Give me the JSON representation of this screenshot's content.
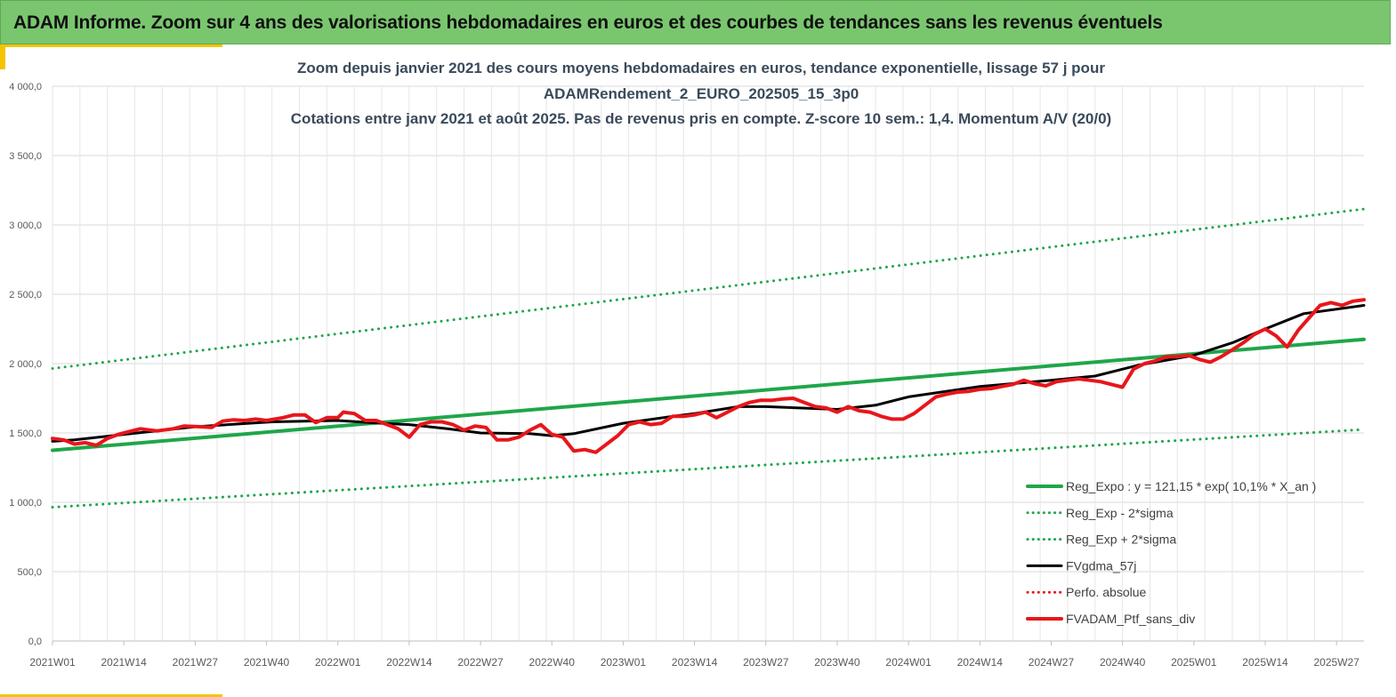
{
  "header": {
    "title": "ADAM Informe. Zoom sur 4 ans des valorisations hebdomadaires en euros et des courbes de tendances sans les revenus éventuels"
  },
  "colors": {
    "header_bg": "#7ac66f",
    "accent": "#f5c400",
    "trend_green": "#1fa64a",
    "series_red": "#e8161b",
    "series_black": "#000000",
    "title_text": "#3a4a5a"
  },
  "chart_data": {
    "type": "line",
    "title_lines": [
      "Zoom depuis janvier 2021 des cours moyens hebdomadaires  en euros, tendance exponentielle, lissage 57 j pour",
      "ADAMRendement_2_EURO_202505_15_3p0",
      "Cotations  entre janv 2021 et août 2025. Pas de revenus pris en compte. Z-score 10 sem.: 1,4. Momentum A/V (20/0)"
    ],
    "ylim": [
      0,
      4000
    ],
    "y_ticks": [
      {
        "value": 0,
        "label": "0,0"
      },
      {
        "value": 500,
        "label": "500,0"
      },
      {
        "value": 1000,
        "label": "1 000,0"
      },
      {
        "value": 1500,
        "label": "1 500,0"
      },
      {
        "value": 2000,
        "label": "2 000,0"
      },
      {
        "value": 2500,
        "label": "2 500,0"
      },
      {
        "value": 3000,
        "label": "3 000,0"
      },
      {
        "value": 3500,
        "label": "3 500,0"
      },
      {
        "value": 4000,
        "label": "4 000,0"
      }
    ],
    "x_range_weeks": [
      0,
      239
    ],
    "x_ticks": [
      {
        "week": 0,
        "label": "2021W01"
      },
      {
        "week": 13,
        "label": "2021W14"
      },
      {
        "week": 26,
        "label": "2021W27"
      },
      {
        "week": 39,
        "label": "2021W40"
      },
      {
        "week": 52,
        "label": "2022W01"
      },
      {
        "week": 65,
        "label": "2022W14"
      },
      {
        "week": 78,
        "label": "2022W27"
      },
      {
        "week": 91,
        "label": "2022W40"
      },
      {
        "week": 104,
        "label": "2023W01"
      },
      {
        "week": 117,
        "label": "2023W14"
      },
      {
        "week": 130,
        "label": "2023W27"
      },
      {
        "week": 143,
        "label": "2023W40"
      },
      {
        "week": 156,
        "label": "2024W01"
      },
      {
        "week": 169,
        "label": "2024W14"
      },
      {
        "week": 182,
        "label": "2024W27"
      },
      {
        "week": 195,
        "label": "2024W40"
      },
      {
        "week": 208,
        "label": "2025W01"
      },
      {
        "week": 221,
        "label": "2025W14"
      },
      {
        "week": 234,
        "label": "2025W27"
      }
    ],
    "grid": true,
    "legend_position": "bottom-right",
    "series": [
      {
        "name": "Reg_Expo : y = 121,15 * exp( 10,1% *  X_an )",
        "style": "solid",
        "color": "#1fa64a",
        "width": 4,
        "points": [
          [
            0,
            1375
          ],
          [
            239,
            2175
          ]
        ]
      },
      {
        "name": "Reg_Exp - 2*sigma",
        "style": "dotted",
        "color": "#1fa64a",
        "width": 3,
        "points": [
          [
            0,
            965
          ],
          [
            239,
            1525
          ]
        ]
      },
      {
        "name": "Reg_Exp + 2*sigma",
        "style": "dotted",
        "color": "#1fa64a",
        "width": 3,
        "points": [
          [
            0,
            1965
          ],
          [
            239,
            3115
          ]
        ]
      },
      {
        "name": "FVgdma_57j",
        "style": "solid",
        "color": "#000000",
        "width": 3,
        "points": [
          [
            0,
            1440
          ],
          [
            4,
            1450
          ],
          [
            13,
            1490
          ],
          [
            26,
            1545
          ],
          [
            40,
            1580
          ],
          [
            52,
            1590
          ],
          [
            60,
            1570
          ],
          [
            65,
            1560
          ],
          [
            72,
            1530
          ],
          [
            78,
            1500
          ],
          [
            87,
            1495
          ],
          [
            91,
            1480
          ],
          [
            95,
            1495
          ],
          [
            104,
            1570
          ],
          [
            113,
            1620
          ],
          [
            117,
            1640
          ],
          [
            125,
            1690
          ],
          [
            130,
            1690
          ],
          [
            143,
            1670
          ],
          [
            150,
            1700
          ],
          [
            156,
            1760
          ],
          [
            169,
            1835
          ],
          [
            182,
            1880
          ],
          [
            190,
            1910
          ],
          [
            198,
            1990
          ],
          [
            208,
            2060
          ],
          [
            215,
            2150
          ],
          [
            221,
            2250
          ],
          [
            228,
            2360
          ],
          [
            239,
            2420
          ]
        ]
      },
      {
        "name": "Perfo. absolue",
        "style": "dotted",
        "color": "#e8161b",
        "width": 3,
        "points": []
      },
      {
        "name": "FVADAM_Ptf_sans_div",
        "style": "solid",
        "color": "#e8161b",
        "width": 4,
        "points": [
          [
            0,
            1460
          ],
          [
            2,
            1450
          ],
          [
            4,
            1420
          ],
          [
            6,
            1430
          ],
          [
            8,
            1410
          ],
          [
            10,
            1460
          ],
          [
            12,
            1490
          ],
          [
            14,
            1510
          ],
          [
            16,
            1530
          ],
          [
            19,
            1515
          ],
          [
            22,
            1530
          ],
          [
            24,
            1550
          ],
          [
            27,
            1545
          ],
          [
            29,
            1540
          ],
          [
            31,
            1585
          ],
          [
            33,
            1595
          ],
          [
            35,
            1590
          ],
          [
            37,
            1600
          ],
          [
            39,
            1590
          ],
          [
            42,
            1610
          ],
          [
            44,
            1630
          ],
          [
            46,
            1630
          ],
          [
            48,
            1575
          ],
          [
            50,
            1610
          ],
          [
            52,
            1610
          ],
          [
            53,
            1650
          ],
          [
            55,
            1640
          ],
          [
            57,
            1590
          ],
          [
            59,
            1590
          ],
          [
            61,
            1560
          ],
          [
            63,
            1530
          ],
          [
            65,
            1470
          ],
          [
            67,
            1560
          ],
          [
            69,
            1580
          ],
          [
            71,
            1580
          ],
          [
            73,
            1560
          ],
          [
            75,
            1520
          ],
          [
            77,
            1550
          ],
          [
            79,
            1540
          ],
          [
            81,
            1450
          ],
          [
            83,
            1450
          ],
          [
            85,
            1470
          ],
          [
            87,
            1520
          ],
          [
            89,
            1560
          ],
          [
            91,
            1490
          ],
          [
            93,
            1470
          ],
          [
            95,
            1370
          ],
          [
            97,
            1380
          ],
          [
            99,
            1360
          ],
          [
            101,
            1420
          ],
          [
            103,
            1480
          ],
          [
            105,
            1560
          ],
          [
            107,
            1580
          ],
          [
            109,
            1560
          ],
          [
            111,
            1570
          ],
          [
            113,
            1620
          ],
          [
            115,
            1620
          ],
          [
            117,
            1630
          ],
          [
            119,
            1650
          ],
          [
            121,
            1610
          ],
          [
            123,
            1650
          ],
          [
            125,
            1690
          ],
          [
            127,
            1720
          ],
          [
            129,
            1735
          ],
          [
            131,
            1735
          ],
          [
            133,
            1745
          ],
          [
            135,
            1750
          ],
          [
            137,
            1720
          ],
          [
            139,
            1690
          ],
          [
            141,
            1680
          ],
          [
            143,
            1650
          ],
          [
            145,
            1690
          ],
          [
            147,
            1660
          ],
          [
            149,
            1650
          ],
          [
            151,
            1620
          ],
          [
            153,
            1600
          ],
          [
            155,
            1600
          ],
          [
            157,
            1640
          ],
          [
            159,
            1700
          ],
          [
            161,
            1760
          ],
          [
            163,
            1780
          ],
          [
            165,
            1795
          ],
          [
            167,
            1800
          ],
          [
            169,
            1815
          ],
          [
            171,
            1820
          ],
          [
            173,
            1835
          ],
          [
            175,
            1850
          ],
          [
            177,
            1880
          ],
          [
            179,
            1855
          ],
          [
            181,
            1840
          ],
          [
            183,
            1870
          ],
          [
            185,
            1880
          ],
          [
            187,
            1890
          ],
          [
            189,
            1880
          ],
          [
            191,
            1870
          ],
          [
            193,
            1850
          ],
          [
            195,
            1830
          ],
          [
            197,
            1960
          ],
          [
            199,
            2000
          ],
          [
            201,
            2020
          ],
          [
            203,
            2050
          ],
          [
            205,
            2050
          ],
          [
            207,
            2060
          ],
          [
            209,
            2030
          ],
          [
            211,
            2010
          ],
          [
            213,
            2050
          ],
          [
            215,
            2100
          ],
          [
            217,
            2150
          ],
          [
            219,
            2210
          ],
          [
            221,
            2250
          ],
          [
            223,
            2200
          ],
          [
            225,
            2120
          ],
          [
            227,
            2240
          ],
          [
            229,
            2330
          ],
          [
            231,
            2420
          ],
          [
            233,
            2440
          ],
          [
            235,
            2420
          ],
          [
            237,
            2450
          ],
          [
            239,
            2460
          ]
        ]
      }
    ]
  }
}
